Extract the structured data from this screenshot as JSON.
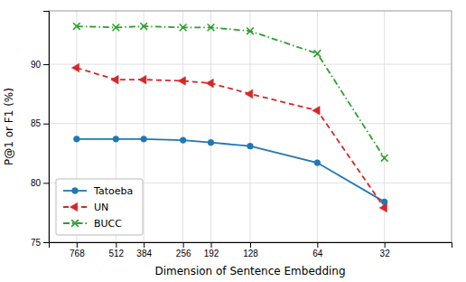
{
  "chart_data": {
    "type": "line",
    "x": [
      768,
      512,
      384,
      256,
      192,
      128,
      64,
      32
    ],
    "series": [
      {
        "name": "Tatoeba",
        "color": "#1f77b4",
        "marker": "circle",
        "line_style": "solid",
        "values": [
          83.7,
          83.7,
          83.7,
          83.6,
          83.4,
          83.1,
          81.7,
          78.4
        ]
      },
      {
        "name": "UN",
        "color": "#d62728",
        "marker": "triangle-left",
        "line_style": "dashed",
        "values": [
          89.7,
          88.7,
          88.7,
          88.6,
          88.4,
          87.5,
          86.1,
          77.9
        ]
      },
      {
        "name": "BUCC",
        "color": "#2ca02c",
        "marker": "x",
        "line_style": "dashdot",
        "values": [
          93.2,
          93.1,
          93.2,
          93.1,
          93.1,
          92.8,
          90.9,
          82.1
        ]
      }
    ],
    "xlabel": "Dimension of Sentence Embedding",
    "ylabel": "P@1 or F1 (%)",
    "xlim": [
      1024,
      16
    ],
    "xticks": [
      768,
      512,
      384,
      256,
      192,
      128,
      64,
      32
    ],
    "ylim": [
      75,
      94.5
    ],
    "yticks": [
      75,
      80,
      85,
      90
    ],
    "log": "x",
    "grid": true,
    "legend": "lower left"
  }
}
